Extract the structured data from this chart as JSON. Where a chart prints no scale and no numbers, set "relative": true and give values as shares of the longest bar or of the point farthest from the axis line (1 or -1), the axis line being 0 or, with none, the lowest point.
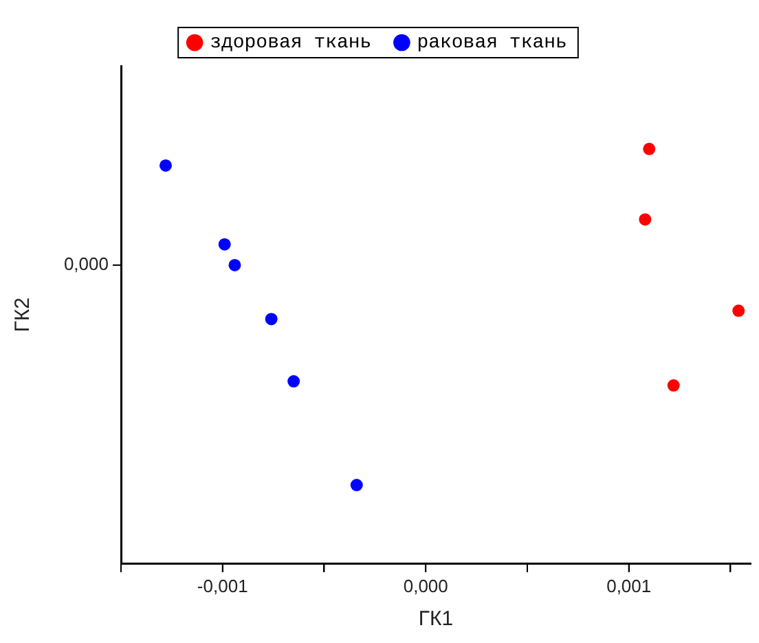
{
  "chart_data": {
    "type": "scatter",
    "xlabel": "ГК1",
    "ylabel": "ГК2",
    "relative": true,
    "xlim": [
      -0.0015,
      0.0016
    ],
    "xticks": [
      {
        "value": -0.0015,
        "label": null
      },
      {
        "value": -0.001,
        "label": "-0,001"
      },
      {
        "value": -0.0005,
        "label": null
      },
      {
        "value": 0,
        "label": "0,000"
      },
      {
        "value": 0.0005,
        "label": null
      },
      {
        "value": 0.001,
        "label": "0,001"
      },
      {
        "value": 0.0015,
        "label": null
      }
    ],
    "annotations": [
      "0,000"
    ],
    "grid": false,
    "legend": "top",
    "marker": "circle",
    "series": [
      {
        "name": "здоровая ткань",
        "color": "#ff0000",
        "x": [
          0.0011,
          0.00108,
          0.00154,
          0.00122
        ],
        "values": [
          1,
          0.83,
          0.61,
          0.43
        ]
      },
      {
        "name": "раковая ткань",
        "color": "#0000ff",
        "x": [
          -0.00128,
          -0.00099,
          -0.00094,
          -0.00076,
          -0.00065,
          -0.00034
        ],
        "values": [
          0.96,
          0.77,
          0.72,
          0.59,
          0.44,
          0.19
        ]
      }
    ]
  }
}
